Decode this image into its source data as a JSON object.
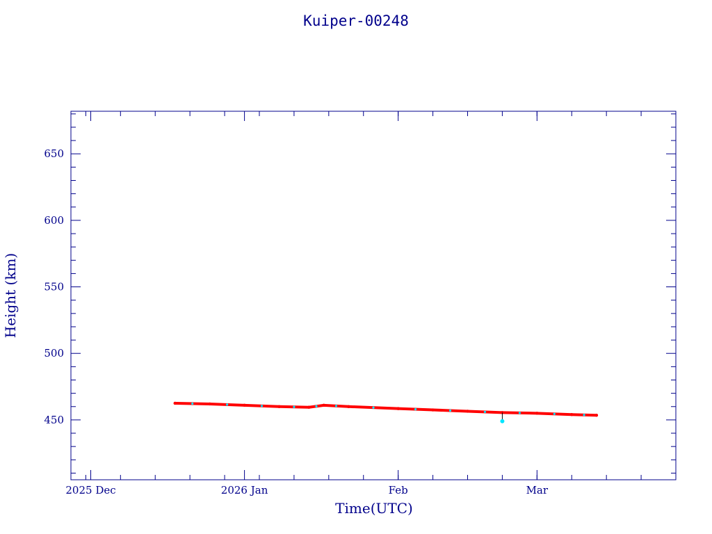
{
  "colors": {
    "axis": "#00008b",
    "series": "#ff0000",
    "points": "#00e5ff"
  },
  "chart_data": {
    "type": "scatter",
    "title": "Kuiper-00248",
    "xlabel": "Time(UTC)",
    "ylabel": "Height (km)",
    "x_range": [
      "2025-11-27",
      "2026-03-29"
    ],
    "ylim": [
      405,
      682
    ],
    "x_ticks": [
      {
        "date": "2025-12-01",
        "label": "2025 Dec"
      },
      {
        "date": "2026-01-01",
        "label": "2026 Jan"
      },
      {
        "date": "2026-02-01",
        "label": "Feb"
      },
      {
        "date": "2026-03-01",
        "label": "Mar"
      }
    ],
    "y_ticks": [
      450,
      500,
      550,
      600,
      650
    ],
    "grid": false,
    "legend": "none",
    "series": [
      {
        "x": [
          "2025-12-18",
          "2025-12-25",
          "2026-01-01",
          "2026-01-08",
          "2026-01-14",
          "2026-01-17",
          "2026-01-22",
          "2026-02-01",
          "2026-02-08",
          "2026-02-15",
          "2026-02-22",
          "2026-03-01",
          "2026-03-08",
          "2026-03-13"
        ],
        "y": [
          462.5,
          462.0,
          461.0,
          460.0,
          459.5,
          461.0,
          460.0,
          458.5,
          457.5,
          456.5,
          455.5,
          455.0,
          454.0,
          453.5
        ]
      }
    ],
    "annotations": [
      {
        "x": "2026-02-22",
        "y": 449,
        "marker": "cyan-point"
      }
    ]
  }
}
